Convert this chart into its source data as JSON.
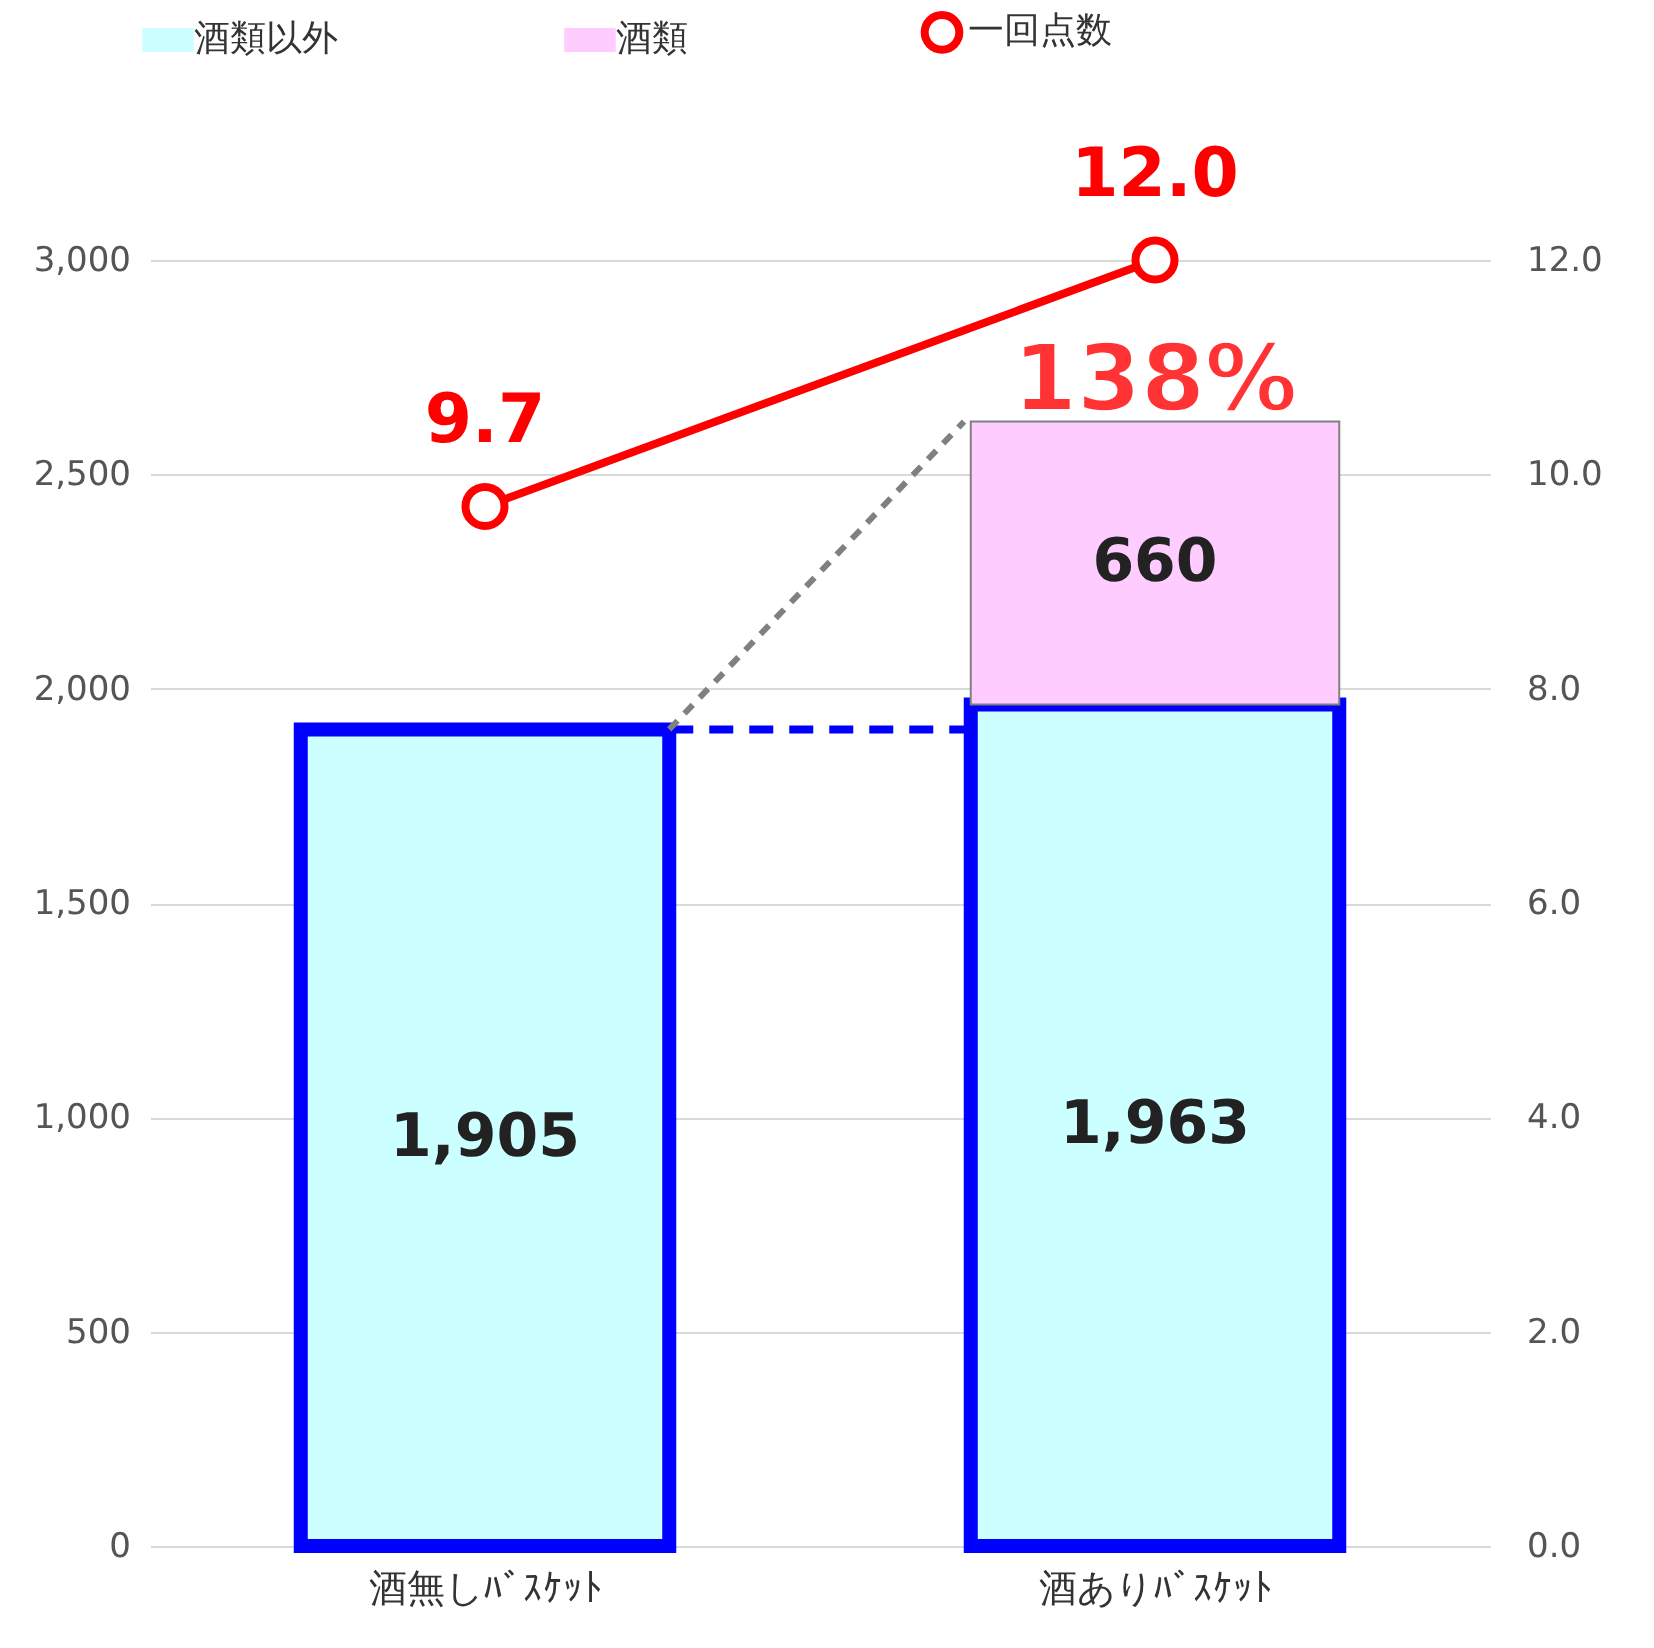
{
  "chart_data": {
    "type": "bar",
    "stacked": true,
    "categories": [
      "酒無しﾊﾞｽｹｯﾄ",
      "酒ありﾊﾞｽｹｯﾄ"
    ],
    "series": [
      {
        "name": "酒類以外",
        "color": "#ccffff",
        "values": [
          1905,
          1963
        ],
        "value_labels": [
          "1,905",
          "1,963"
        ]
      },
      {
        "name": "酒類",
        "color": "#ffccff",
        "values": [
          null,
          660
        ],
        "value_labels": [
          null,
          "660"
        ]
      },
      {
        "name": "一回点数",
        "type": "line",
        "axis": "y2",
        "color": "#ff0000",
        "values": [
          9.7,
          12.0
        ],
        "value_labels": [
          "9.7",
          "12.0"
        ]
      }
    ],
    "ylim": [
      0,
      3000
    ],
    "yticks": [
      {
        "value": 0,
        "label": "0"
      },
      {
        "value": 500,
        "label": "500"
      },
      {
        "value": 1000,
        "label": "1,000"
      },
      {
        "value": 1500,
        "label": "1,500"
      },
      {
        "value": 2000,
        "label": "2,000"
      },
      {
        "value": 2500,
        "label": "2,500"
      },
      {
        "value": 3000,
        "label": "3,000"
      }
    ],
    "y2lim": [
      0,
      12
    ],
    "y2ticks": [
      {
        "value": 0,
        "label": "0.0"
      },
      {
        "value": 2,
        "label": "2.0"
      },
      {
        "value": 4,
        "label": "4.0"
      },
      {
        "value": 6,
        "label": "6.0"
      },
      {
        "value": 8,
        "label": "8.0"
      },
      {
        "value": 10,
        "label": "10.0"
      },
      {
        "value": 12,
        "label": "12.0"
      }
    ],
    "ref_lines": [
      {
        "axis": "y",
        "value": 1905,
        "color": "#0000ff",
        "line_style": "dashed"
      }
    ],
    "annotations": [
      {
        "text": "138%",
        "x": "酒ありﾊﾞｽｹｯﾄ",
        "y": 2623
      }
    ],
    "grid": "y",
    "legend": "top",
    "marker": "circle"
  }
}
